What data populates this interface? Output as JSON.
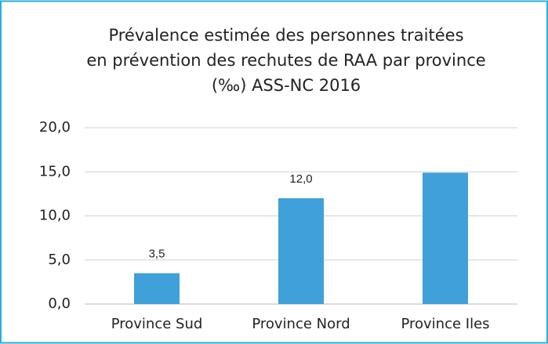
{
  "chart_data": {
    "type": "bar",
    "title": [
      "Prévalence estimée des personnes traitées",
      "en prévention des rechutes de RAA par province",
      "(‰) ASS-NC 2016"
    ],
    "categories": [
      "Province Sud",
      "Province Nord",
      "Province Iles"
    ],
    "values": [
      3.5,
      12.0,
      14.9
    ],
    "value_labels": [
      "3,5",
      "12,0",
      null
    ],
    "color": "#3fa0da",
    "ylim": [
      0,
      20
    ],
    "yticks": [
      {
        "value": 0,
        "label": "0,0"
      },
      {
        "value": 5,
        "label": "5,0"
      },
      {
        "value": 10,
        "label": "10,0"
      },
      {
        "value": 15,
        "label": "15,0"
      },
      {
        "value": 20,
        "label": "20,0"
      }
    ],
    "grid": true
  }
}
